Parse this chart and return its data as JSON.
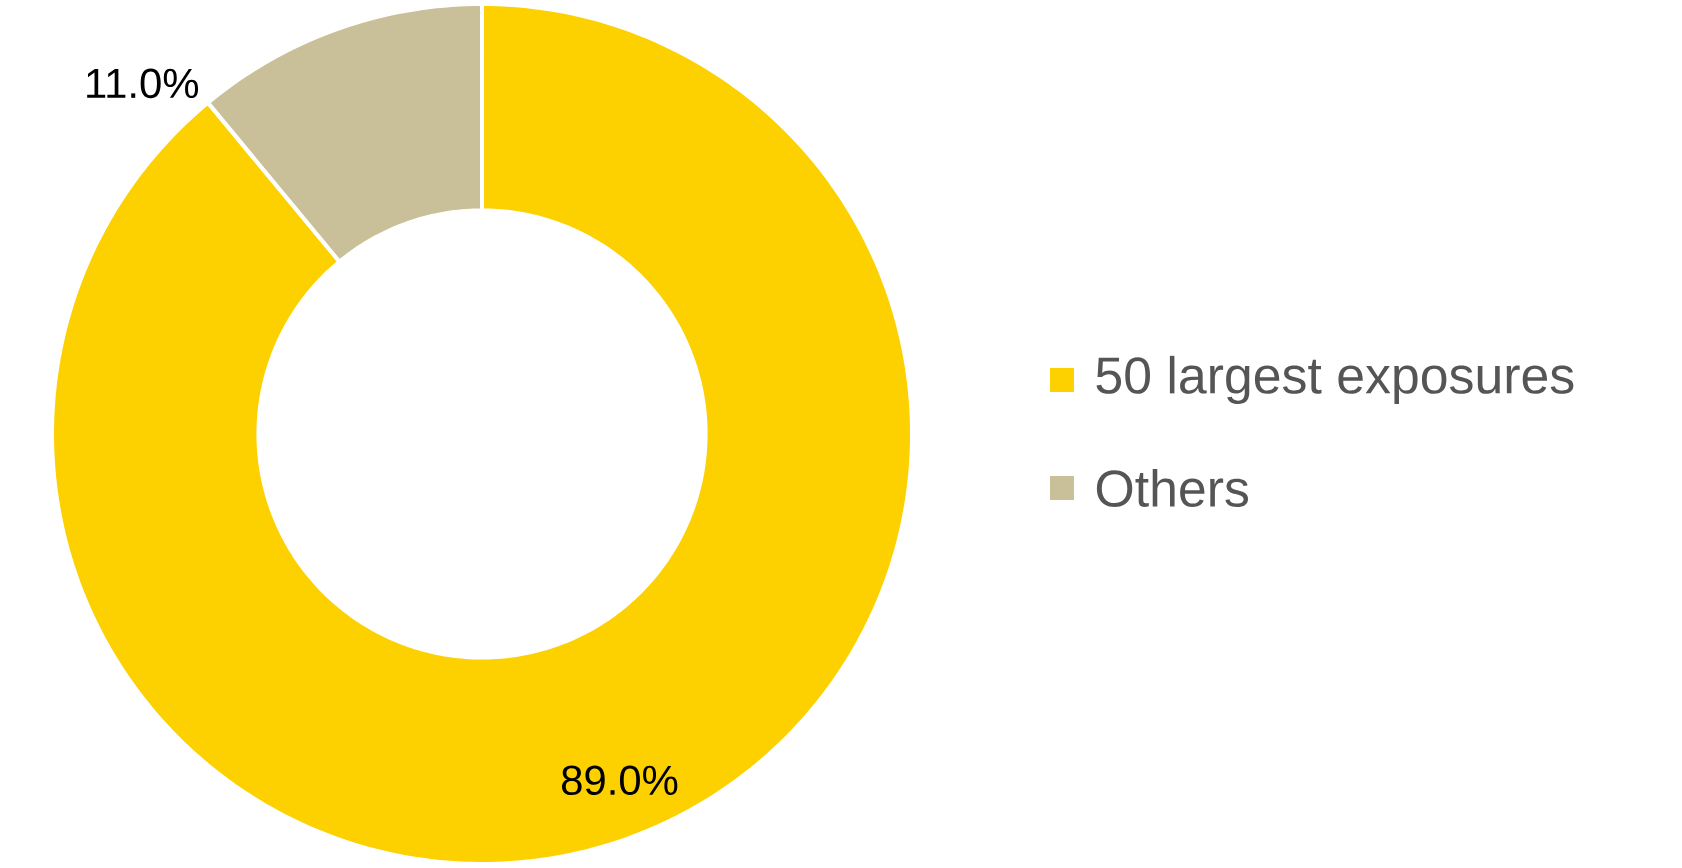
{
  "chart_data": {
    "type": "donut",
    "categories": [
      "50 largest exposures",
      "Others"
    ],
    "values": [
      89.0,
      11.0
    ],
    "colors": [
      "#fdd000",
      "#c9bf98"
    ],
    "value_labels": [
      "89.0%",
      "11.0%"
    ],
    "legend": "right"
  }
}
